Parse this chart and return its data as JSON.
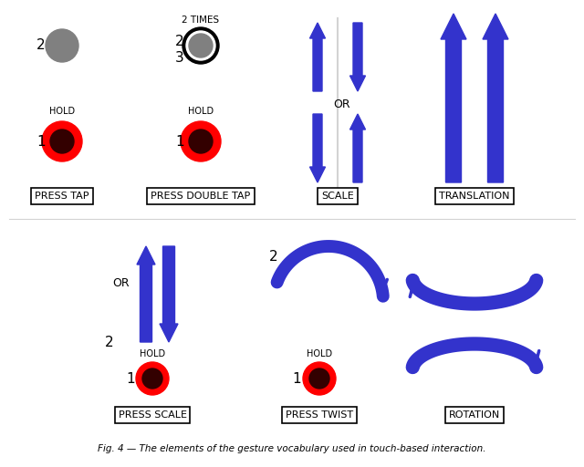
{
  "blue": "#3333CC",
  "red": "#FF0000",
  "dark_red": "#330000",
  "gray": "#808080",
  "labels": {
    "press_tap": "PRESS TAP",
    "press_double_tap": "PRESS DOUBLE TAP",
    "scale": "SCALE",
    "translation": "TRANSLATION",
    "press_scale": "PRESS SCALE",
    "press_twist": "PRESS TWIST",
    "rotation": "ROTATION"
  },
  "caption": "Fig. 4 — The elements of the gesture vocabulary used in touch-based interaction."
}
